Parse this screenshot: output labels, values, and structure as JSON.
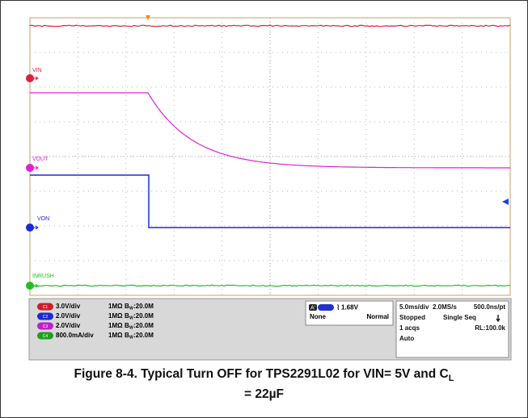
{
  "traces": [
    {
      "label": "VIN"
    },
    {
      "label": "VOUT"
    },
    {
      "label": "VON"
    },
    {
      "label": "INRUSH"
    }
  ],
  "channels": [
    {
      "badge": "C1",
      "scale": "3.0V/div",
      "impedance": "1MΩ",
      "bandwidth": ":20.0M"
    },
    {
      "badge": "C2",
      "scale": "2.0V/div",
      "impedance": "1MΩ",
      "bandwidth": ":20.0M"
    },
    {
      "badge": "C3",
      "scale": "2.0V/div",
      "impedance": "1MΩ",
      "bandwidth": ":20.0M"
    },
    {
      "badge": "C4",
      "scale": "800.0mA/div",
      "impedance": "1MΩ",
      "bandwidth": ":20.0M"
    }
  ],
  "bw_symbol": "B",
  "bw_subscript": "W",
  "trigger": {
    "badge": "A'",
    "level": "1.68V",
    "source": "None",
    "mode": "Normal"
  },
  "acquisition": {
    "timebase": "5.0ms/div",
    "rate": "2.0MS/s",
    "resolution": "500.0ns/pt",
    "state": "Stopped",
    "sequence": "Single Seq",
    "acqs": "1 acqs",
    "record": "RL:100.0k",
    "trigger_mode": "Auto"
  },
  "caption": {
    "line1": "Figure 8-4. Typical Turn OFF for TPS2291L02 for VIN= 5V and C",
    "subscript": "L",
    "line2": "= 22µF"
  }
}
